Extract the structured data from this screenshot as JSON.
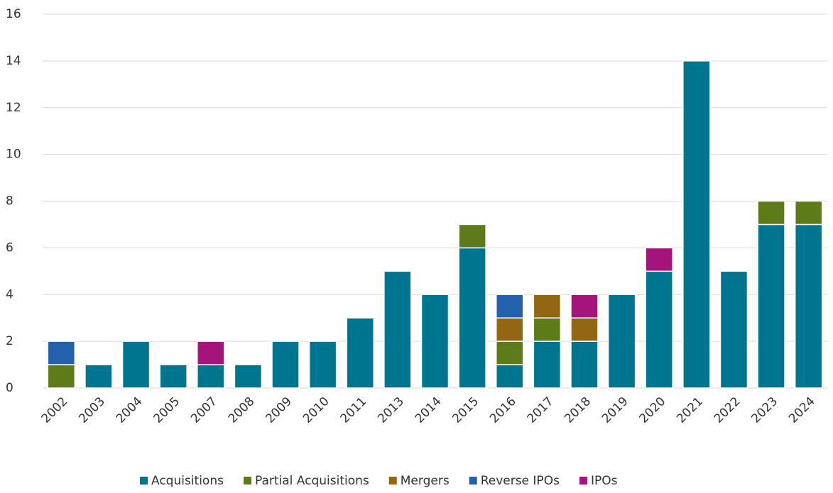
{
  "chart_data": {
    "type": "stacked_bar",
    "categories": [
      "2002",
      "2003",
      "2004",
      "2005",
      "2007",
      "2008",
      "2009",
      "2010",
      "2011",
      "2013",
      "2014",
      "2015",
      "2016",
      "2017",
      "2018",
      "2019",
      "2020",
      "2021",
      "2022",
      "2023",
      "2024"
    ],
    "series": [
      {
        "name": "Acquisitions",
        "color": "#00758f",
        "values": [
          0,
          1,
          2,
          1,
          1,
          1,
          2,
          2,
          3,
          5,
          4,
          6,
          1,
          2,
          2,
          4,
          5,
          14,
          5,
          7,
          7
        ]
      },
      {
        "name": "Partial Acquisitions",
        "color": "#5e7b1a",
        "values": [
          1,
          0,
          0,
          0,
          0,
          0,
          0,
          0,
          0,
          0,
          0,
          1,
          1,
          1,
          0,
          0,
          0,
          0,
          0,
          1,
          1
        ]
      },
      {
        "name": "Mergers",
        "color": "#936712",
        "values": [
          0,
          0,
          0,
          0,
          0,
          0,
          0,
          0,
          0,
          0,
          0,
          0,
          1,
          1,
          1,
          0,
          0,
          0,
          0,
          0,
          0
        ]
      },
      {
        "name": "Reverse IPOs",
        "color": "#2361ad",
        "values": [
          1,
          0,
          0,
          0,
          0,
          0,
          0,
          0,
          0,
          0,
          0,
          0,
          1,
          0,
          0,
          0,
          0,
          0,
          0,
          0,
          0
        ]
      },
      {
        "name": "IPOs",
        "color": "#a5147a",
        "values": [
          0,
          0,
          0,
          0,
          1,
          0,
          0,
          0,
          0,
          0,
          0,
          0,
          0,
          0,
          1,
          0,
          1,
          0,
          0,
          0,
          0
        ]
      }
    ],
    "ylim": [
      0,
      16
    ],
    "yticks": [
      0,
      2,
      4,
      6,
      8,
      10,
      12,
      14,
      16
    ],
    "grid": true,
    "legend": "bottom"
  }
}
